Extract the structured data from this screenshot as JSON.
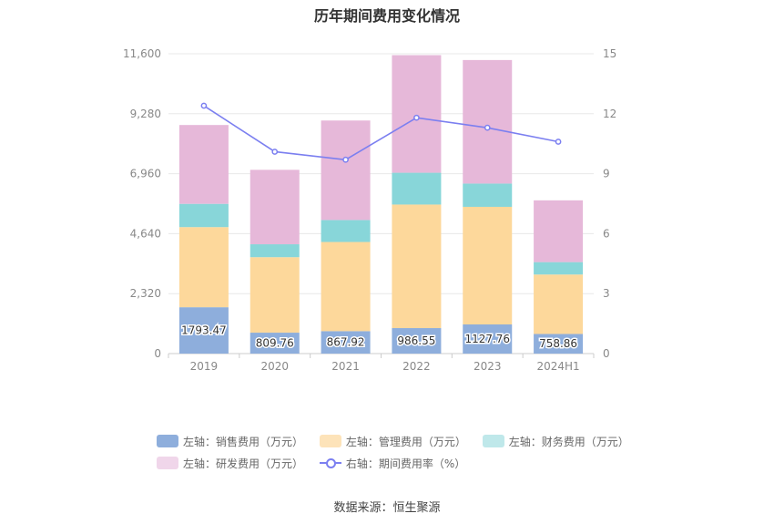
{
  "chart_data": {
    "type": "bar",
    "title": "历年期间费用变化情况",
    "categories": [
      "2019",
      "2020",
      "2021",
      "2022",
      "2023",
      "2024H1"
    ],
    "left_axis": {
      "ticks": [
        "0",
        "2,320",
        "4,640",
        "6,960",
        "9,280",
        "11,600"
      ],
      "ylim": [
        0,
        11600
      ]
    },
    "right_axis": {
      "ticks": [
        "0",
        "3",
        "6",
        "9",
        "12",
        "15"
      ],
      "ylim": [
        0,
        15
      ]
    },
    "series": [
      {
        "name": "左轴：销售费用（万元）",
        "color": "#8eaedc",
        "values": [
          1793.47,
          809.76,
          867.92,
          986.55,
          1127.76,
          758.86
        ],
        "labels": [
          "1793.47",
          "809.76",
          "867.92",
          "986.55",
          "1127.76",
          "758.86"
        ]
      },
      {
        "name": "左轴：管理费用（万元）",
        "color": "#fdd89b",
        "values": [
          3100,
          2920,
          3450,
          4780,
          4550,
          2300
        ]
      },
      {
        "name": "左轴：财务费用（万元）",
        "color": "#88d6d9",
        "values": [
          900,
          500,
          850,
          1230,
          900,
          480
        ]
      },
      {
        "name": "左轴：研发费用（万元）",
        "color": "#e6b8d9",
        "values": [
          3050,
          2880,
          3850,
          4550,
          4780,
          2390
        ]
      }
    ],
    "line_series": {
      "name": "右轴：期间费用率（%）",
      "color": "#7b7ff0",
      "values": [
        12.4,
        10.1,
        9.7,
        11.8,
        11.3,
        10.6
      ]
    },
    "legend_swatch_colors": [
      "#8eaedc",
      "#fde3b9",
      "#bfe8ea",
      "#f0d6ea"
    ]
  },
  "source": "数据来源：恒生聚源"
}
